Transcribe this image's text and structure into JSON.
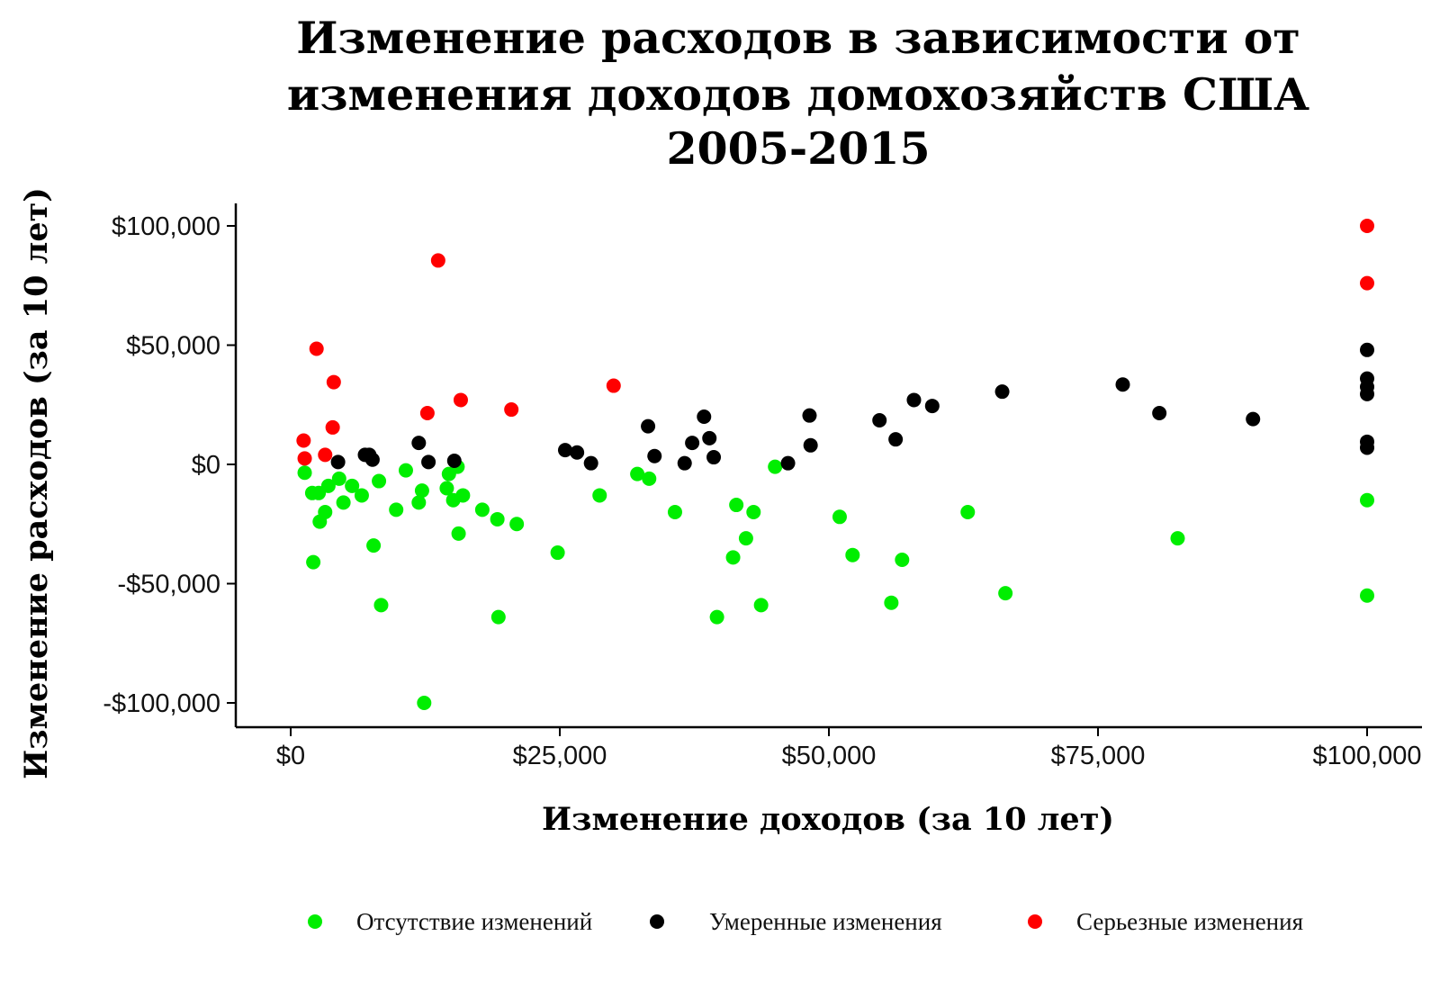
{
  "chart_data": {
    "type": "scatter",
    "title": [
      "Изменение расходов в зависимости от",
      "изменения доходов домохозяйств США",
      "2005-2015"
    ],
    "xlabel": "Изменение доходов (за 10 лет)",
    "ylabel": "Изменение расходов (за 10 лет)",
    "xlim": [
      -5000,
      105000
    ],
    "ylim": [
      -110000,
      110000
    ],
    "x_ticks": [
      0,
      25000,
      50000,
      75000,
      100000
    ],
    "x_tick_labels": [
      "$0",
      "$25,000",
      "$50,000",
      "$75,000",
      "$100,000"
    ],
    "y_ticks": [
      100000,
      50000,
      0,
      -50000,
      -100000
    ],
    "y_tick_labels": [
      "$100,000",
      "$50,000",
      "$0",
      "-$50,000",
      "-$100,000"
    ],
    "grid": false,
    "legend_position": "bottom",
    "series": [
      {
        "name": "Отсутствие изменений",
        "color": "#00ee00",
        "points": [
          [
            1300,
            -3500
          ],
          [
            2000,
            -12000
          ],
          [
            2100,
            -41000
          ],
          [
            2600,
            -12000
          ],
          [
            2700,
            -24000
          ],
          [
            3200,
            -20000
          ],
          [
            3500,
            -9000
          ],
          [
            4500,
            -6000
          ],
          [
            4900,
            -16000
          ],
          [
            5700,
            -9000
          ],
          [
            6600,
            -13000
          ],
          [
            7700,
            -34000
          ],
          [
            8200,
            -7000
          ],
          [
            8400,
            -59000
          ],
          [
            9800,
            -19000
          ],
          [
            10700,
            -2500
          ],
          [
            11900,
            -16000
          ],
          [
            12200,
            -11000
          ],
          [
            12400,
            -100000
          ],
          [
            14500,
            -10000
          ],
          [
            14700,
            -4000
          ],
          [
            15100,
            -15000
          ],
          [
            15500,
            -1000
          ],
          [
            15600,
            -29000
          ],
          [
            16000,
            -13000
          ],
          [
            17800,
            -19000
          ],
          [
            19200,
            -23000
          ],
          [
            19300,
            -64000
          ],
          [
            21000,
            -25000
          ],
          [
            24800,
            -37000
          ],
          [
            28700,
            -13000
          ],
          [
            32200,
            -4000
          ],
          [
            33300,
            -6000
          ],
          [
            35700,
            -20000
          ],
          [
            39600,
            -64000
          ],
          [
            41100,
            -39000
          ],
          [
            41400,
            -17000
          ],
          [
            42300,
            -31000
          ],
          [
            43000,
            -20000
          ],
          [
            43700,
            -59000
          ],
          [
            45000,
            -1000
          ],
          [
            51000,
            -22000
          ],
          [
            52200,
            -38000
          ],
          [
            55800,
            -58000
          ],
          [
            56800,
            -40000
          ],
          [
            62900,
            -20000
          ],
          [
            66400,
            -54000
          ],
          [
            82400,
            -31000
          ],
          [
            100000,
            -15000
          ],
          [
            100000,
            -55000
          ]
        ]
      },
      {
        "name": "Умеренные изменения",
        "color": "#000000",
        "points": [
          [
            4400,
            1000
          ],
          [
            6900,
            4000
          ],
          [
            7300,
            4000
          ],
          [
            7600,
            2000
          ],
          [
            11900,
            9000
          ],
          [
            12800,
            1000
          ],
          [
            15200,
            1500
          ],
          [
            25500,
            6000
          ],
          [
            26600,
            5000
          ],
          [
            27900,
            500
          ],
          [
            33200,
            16000
          ],
          [
            33800,
            3500
          ],
          [
            36600,
            500
          ],
          [
            37300,
            9000
          ],
          [
            38400,
            20000
          ],
          [
            38900,
            11000
          ],
          [
            39300,
            3000
          ],
          [
            46200,
            500
          ],
          [
            48200,
            20500
          ],
          [
            48300,
            8000
          ],
          [
            54700,
            18500
          ],
          [
            56200,
            10500
          ],
          [
            57900,
            27000
          ],
          [
            59600,
            24500
          ],
          [
            66100,
            30500
          ],
          [
            77300,
            33500
          ],
          [
            80700,
            21500
          ],
          [
            89400,
            19000
          ],
          [
            100000,
            48000
          ],
          [
            100000,
            36000
          ],
          [
            100000,
            32500
          ],
          [
            100000,
            29500
          ],
          [
            100000,
            9500
          ],
          [
            100000,
            7000
          ]
        ]
      },
      {
        "name": "Серьезные изменения",
        "color": "#ff0000",
        "points": [
          [
            1200,
            10000
          ],
          [
            1300,
            2500
          ],
          [
            2400,
            48500
          ],
          [
            3200,
            4000
          ],
          [
            3900,
            15500
          ],
          [
            4000,
            34500
          ],
          [
            12700,
            21500
          ],
          [
            13700,
            85500
          ],
          [
            15800,
            27000
          ],
          [
            20500,
            23000
          ],
          [
            30000,
            33000
          ],
          [
            100000,
            100000
          ],
          [
            100000,
            76000
          ]
        ]
      }
    ]
  }
}
